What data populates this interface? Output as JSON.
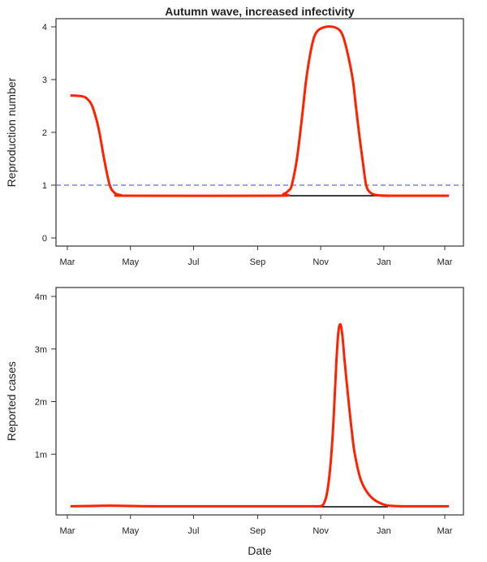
{
  "chart_data": [
    {
      "type": "line",
      "title": "Autumn wave, increased infectivity",
      "xlabel": "",
      "ylabel": "Reproduction number",
      "x_ticks": [
        "Mar",
        "May",
        "Jul",
        "Sep",
        "Nov",
        "Jan",
        "Mar"
      ],
      "x_tick_dates": [
        "2020-03-01",
        "2020-05-01",
        "2020-07-01",
        "2020-09-01",
        "2020-11-01",
        "2021-01-01",
        "2021-03-01"
      ],
      "y_ticks": [
        0,
        1,
        2,
        3,
        4
      ],
      "y_tick_labels": [
        "0",
        "1",
        "2",
        "3",
        "4"
      ],
      "ylim": [
        0,
        4
      ],
      "xlim": [
        "2020-03-01",
        "2021-03-05"
      ],
      "grid": false,
      "reference_line": {
        "y": 1,
        "style": "dashed",
        "color": "#3344ee"
      },
      "series": [
        {
          "color": "#000000",
          "x": [
            "2020-09-23",
            "2020-12-26"
          ],
          "y": [
            0.8,
            0.8
          ]
        },
        {
          "color": "#ff2200",
          "x": [
            "2020-03-04",
            "2020-03-16",
            "2020-03-21",
            "2020-03-25",
            "2020-03-29",
            "2020-04-01",
            "2020-04-06",
            "2020-04-11",
            "2020-04-16",
            "2020-04-22",
            "2020-04-29",
            "2020-09-18",
            "2020-09-26",
            "2020-10-01",
            "2020-10-04",
            "2020-10-09",
            "2020-10-14",
            "2020-10-18",
            "2020-10-23",
            "2020-10-28",
            "2020-11-06",
            "2020-11-16",
            "2020-11-22",
            "2020-11-27",
            "2020-12-02",
            "2020-12-05",
            "2020-12-08",
            "2020-12-12",
            "2020-12-15",
            "2020-12-19",
            "2020-12-26",
            "2021-01-10",
            "2021-03-05"
          ],
          "y": [
            2.7,
            2.68,
            2.62,
            2.5,
            2.25,
            2.0,
            1.45,
            1.0,
            0.85,
            0.81,
            0.8,
            0.8,
            0.83,
            0.9,
            1.0,
            1.5,
            2.3,
            3.0,
            3.6,
            3.9,
            4.0,
            3.98,
            3.85,
            3.5,
            3.0,
            2.5,
            2.0,
            1.4,
            1.0,
            0.86,
            0.81,
            0.8,
            0.8
          ]
        }
      ]
    },
    {
      "type": "line",
      "title": "",
      "xlabel": "Date",
      "ylabel": "Reported cases",
      "x_ticks": [
        "Mar",
        "May",
        "Jul",
        "Sep",
        "Nov",
        "Jan",
        "Mar"
      ],
      "x_tick_dates": [
        "2020-03-01",
        "2020-05-01",
        "2020-07-01",
        "2020-09-01",
        "2020-11-01",
        "2021-01-01",
        "2021-03-01"
      ],
      "y_ticks": [
        1000000,
        2000000,
        3000000,
        4000000
      ],
      "y_tick_labels": [
        "1m",
        "2m",
        "3m",
        "4m"
      ],
      "ylim": [
        0,
        4000000
      ],
      "xlim": [
        "2020-03-01",
        "2021-03-05"
      ],
      "grid": false,
      "series": [
        {
          "color": "#000000",
          "x": [
            "2020-11-01",
            "2021-01-05"
          ],
          "y": [
            0,
            0
          ]
        },
        {
          "color": "#ff2200",
          "x": [
            "2020-03-04",
            "2020-03-25",
            "2020-04-11",
            "2020-05-01",
            "2020-06-01",
            "2020-09-01",
            "2020-10-25",
            "2020-11-01",
            "2020-11-04",
            "2020-11-07",
            "2020-11-10",
            "2020-11-13",
            "2020-11-16",
            "2020-11-18",
            "2020-11-20",
            "2020-11-22",
            "2020-11-24",
            "2020-11-28",
            "2020-12-01",
            "2020-12-04",
            "2020-12-10",
            "2020-12-19",
            "2020-12-31",
            "2021-01-15",
            "2021-03-05"
          ],
          "y": [
            10000,
            15000,
            22000,
            15000,
            10000,
            10000,
            10000,
            15000,
            60000,
            250000,
            700000,
            1500000,
            2700000,
            3300000,
            3470000,
            3250000,
            2800000,
            2000000,
            1450000,
            1000000,
            500000,
            200000,
            50000,
            12000,
            10000
          ]
        }
      ]
    }
  ]
}
